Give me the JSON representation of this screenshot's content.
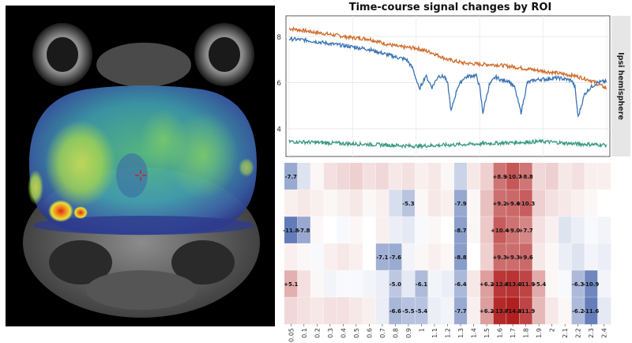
{
  "view": {
    "title": "Time-course signal changes by ROI",
    "colors": {
      "series_blue": "#3a73b4",
      "series_orange": "#cf6d2c",
      "series_green": "#3a9a80",
      "strip_bg": "#e6e6e6",
      "crosshair": "#cc2222"
    },
    "crosshair_icon": "crosshair-icon"
  },
  "chart_data": [
    {
      "type": "line",
      "title": "Time-course signal changes by ROI",
      "facet_label": "Ipsi hemisphere",
      "yticks": [
        "4",
        "6",
        "8"
      ],
      "ylim": [
        2.8,
        8.9
      ],
      "xlim": [
        0,
        100
      ],
      "grid": true,
      "series": [
        {
          "color": "#cf6d2c",
          "x": [
            0,
            5,
            10,
            15,
            20,
            25,
            30,
            35,
            40,
            45,
            50,
            55,
            60,
            65,
            70,
            75,
            80,
            85,
            90,
            95,
            100
          ],
          "values": [
            8.35,
            8.25,
            8.15,
            8.05,
            7.95,
            7.9,
            7.7,
            7.55,
            7.5,
            7.3,
            7.0,
            6.85,
            6.8,
            6.78,
            6.7,
            6.6,
            6.5,
            6.4,
            6.3,
            6.1,
            5.75
          ]
        },
        {
          "color": "#3a73b4",
          "x": [
            0,
            5,
            10,
            15,
            20,
            25,
            30,
            34,
            37,
            39,
            41,
            43,
            45,
            47,
            49,
            50,
            51,
            53,
            55,
            57,
            59,
            60,
            61,
            63,
            65,
            67,
            69,
            71,
            73,
            75,
            77,
            79,
            81,
            83,
            85,
            87,
            89,
            90,
            91,
            93,
            95,
            97,
            99,
            100
          ],
          "values": [
            7.9,
            7.85,
            7.75,
            7.65,
            7.55,
            7.45,
            7.25,
            7.1,
            7.0,
            6.6,
            5.7,
            6.3,
            5.8,
            6.3,
            6.25,
            5.9,
            4.75,
            5.8,
            6.2,
            6.3,
            6.3,
            5.8,
            4.7,
            5.9,
            6.25,
            6.1,
            6.1,
            5.8,
            4.7,
            6.0,
            6.1,
            6.15,
            6.15,
            6.2,
            6.2,
            6.15,
            6.1,
            5.8,
            4.5,
            5.5,
            5.8,
            6.0,
            6.05,
            6.05
          ]
        },
        {
          "color": "#3a9a80",
          "x": [
            0,
            10,
            20,
            30,
            40,
            50,
            60,
            70,
            80,
            90,
            100
          ],
          "values": [
            3.45,
            3.4,
            3.35,
            3.3,
            3.25,
            3.3,
            3.35,
            3.4,
            3.45,
            3.35,
            3.3
          ]
        }
      ]
    },
    {
      "type": "heatmap",
      "columns": [
        "0.05",
        "0.1",
        "0.2",
        "0.3",
        "0.4",
        "0.5",
        "0.6",
        "0.7",
        "0.8",
        "0.9",
        "1",
        "1.1",
        "1.2",
        "1.3",
        "1.4",
        "1.5",
        "1.6",
        "1.7",
        "1.8",
        "1.9",
        "2",
        "2.1",
        "2.2",
        "2.3",
        "2.4"
      ],
      "rows": [
        [
          -7.7,
          -2.5,
          0.5,
          2.0,
          2.5,
          3.0,
          2.0,
          2.5,
          1.5,
          2.0,
          1.0,
          1.5,
          0.5,
          -4.0,
          1.5,
          3.0,
          8.9,
          10.7,
          8.8,
          2.5,
          3.0,
          1.5,
          2.0,
          1.0,
          1.0
        ],
        [
          1.0,
          1.5,
          1.0,
          0.5,
          1.0,
          1.5,
          0.5,
          1.0,
          -3.0,
          -5.3,
          0.5,
          1.5,
          1.0,
          -7.9,
          0.5,
          4.0,
          9.2,
          9.6,
          10.3,
          3.0,
          2.0,
          1.5,
          1.0,
          0.5,
          0.0
        ],
        [
          -11.8,
          -7.8,
          0.5,
          0.0,
          -0.5,
          0.5,
          0.0,
          1.0,
          -1.5,
          -2.0,
          -0.5,
          0.5,
          0.0,
          -8.7,
          0.5,
          3.5,
          10.4,
          9.0,
          7.7,
          2.0,
          1.0,
          -2.5,
          -1.5,
          -0.5,
          -1.0
        ],
        [
          1.0,
          0.5,
          -0.5,
          1.0,
          1.5,
          1.0,
          0.0,
          -7.1,
          -7.6,
          -1.0,
          0.5,
          1.0,
          0.5,
          -8.8,
          0.0,
          3.0,
          9.3,
          9.3,
          9.6,
          1.5,
          0.5,
          -1.5,
          -2.5,
          -1.0,
          -1.5
        ],
        [
          5.1,
          2.0,
          0.5,
          -1.0,
          -0.5,
          -0.5,
          -1.0,
          -1.5,
          -5.0,
          -2.0,
          -6.1,
          -1.0,
          -1.5,
          -6.4,
          1.5,
          6.2,
          12.8,
          13.0,
          11.9,
          5.4,
          0.5,
          -0.5,
          -6.3,
          -10.9,
          -1.0
        ],
        [
          2.5,
          2.0,
          1.5,
          2.0,
          2.0,
          1.5,
          1.0,
          -1.5,
          -6.6,
          -5.5,
          -5.4,
          -1.5,
          -1.0,
          -7.7,
          1.0,
          6.2,
          13.7,
          14.3,
          11.9,
          4.5,
          1.5,
          0.5,
          -6.2,
          -11.6,
          -2.0
        ]
      ],
      "labels": [
        [
          {
            "col": 0,
            "text": "-7.7"
          },
          {
            "col": 16,
            "text": "+8.9"
          },
          {
            "col": 17,
            "text": "+10.7"
          },
          {
            "col": 18,
            "text": "+8.8"
          }
        ],
        [
          {
            "col": 9,
            "text": "-5.3"
          },
          {
            "col": 13,
            "text": "-7.9"
          },
          {
            "col": 16,
            "text": "+9.2"
          },
          {
            "col": 17,
            "text": "+9.6"
          },
          {
            "col": 18,
            "text": "+10.3"
          }
        ],
        [
          {
            "col": 0,
            "text": "-11.8"
          },
          {
            "col": 1,
            "text": "-7.8"
          },
          {
            "col": 13,
            "text": "-8.7"
          },
          {
            "col": 16,
            "text": "+10.4"
          },
          {
            "col": 17,
            "text": "+9.0"
          },
          {
            "col": 18,
            "text": "+7.7"
          }
        ],
        [
          {
            "col": 7,
            "text": "-7.1"
          },
          {
            "col": 8,
            "text": "-7.6"
          },
          {
            "col": 13,
            "text": "-8.8"
          },
          {
            "col": 16,
            "text": "+9.3"
          },
          {
            "col": 17,
            "text": "+9.3"
          },
          {
            "col": 18,
            "text": "+9.6"
          }
        ],
        [
          {
            "col": 0,
            "text": "+5.1"
          },
          {
            "col": 8,
            "text": "-5.0"
          },
          {
            "col": 10,
            "text": "-6.1"
          },
          {
            "col": 13,
            "text": "-6.4"
          },
          {
            "col": 15,
            "text": "+6.2"
          },
          {
            "col": 16,
            "text": "+12.8"
          },
          {
            "col": 17,
            "text": "+13.0"
          },
          {
            "col": 18,
            "text": "+11.9"
          },
          {
            "col": 19,
            "text": "+5.4"
          },
          {
            "col": 22,
            "text": "-6.3"
          },
          {
            "col": 23,
            "text": "-10.9"
          }
        ],
        [
          {
            "col": 8,
            "text": "-6.6"
          },
          {
            "col": 9,
            "text": "-5.5"
          },
          {
            "col": 10,
            "text": "-5.4"
          },
          {
            "col": 13,
            "text": "-7.7"
          },
          {
            "col": 15,
            "text": "+6.2"
          },
          {
            "col": 16,
            "text": "+13.7"
          },
          {
            "col": 17,
            "text": "+14.3"
          },
          {
            "col": 18,
            "text": "+11.9"
          },
          {
            "col": 22,
            "text": "-6.2"
          },
          {
            "col": 23,
            "text": "-11.6"
          }
        ]
      ],
      "color_scale": {
        "negative": "#3f5ea8",
        "neutral": "#ffffff",
        "positive": "#b01c1c",
        "max_abs": 14.5
      }
    }
  ]
}
